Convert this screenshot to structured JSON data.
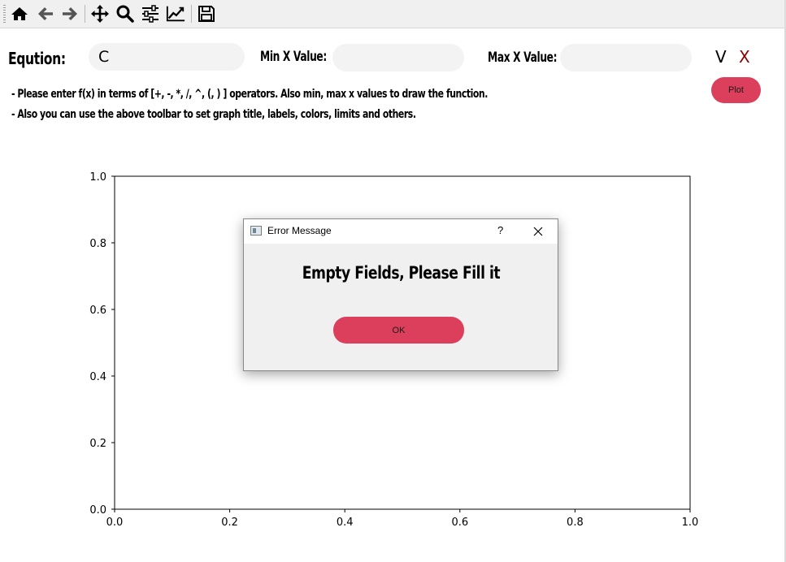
{
  "toolbar": {
    "buttons": [
      {
        "name": "home-icon"
      },
      {
        "name": "back-arrow-icon"
      },
      {
        "name": "forward-arrow-icon"
      },
      {
        "name": "pan-move-icon"
      },
      {
        "name": "zoom-icon"
      },
      {
        "name": "subplots-config-icon"
      },
      {
        "name": "edit-axes-icon"
      },
      {
        "name": "save-icon"
      }
    ]
  },
  "form": {
    "equation_label": "Eqution:",
    "equation_value": "C",
    "min_label": "Min X Value:",
    "min_value": "",
    "max_label": "Max X Value:",
    "max_value": "",
    "v_label": "V",
    "x_label": "X",
    "plot_label": "Plot"
  },
  "hints": [
    "- Please enter f(x) in terms of [+, -, *, /, ^, (, ) ] operators. Also min, max x values to draw the function.",
    "- Also you can use the above toolbar to set graph title, labels, colors, limits and others."
  ],
  "chart_data": {
    "type": "line",
    "title": "",
    "xlabel": "",
    "ylabel": "",
    "xlim": [
      0.0,
      1.0
    ],
    "ylim": [
      0.0,
      1.0
    ],
    "x_ticks": [
      "0.0",
      "0.2",
      "0.4",
      "0.6",
      "0.8",
      "1.0"
    ],
    "y_ticks": [
      "0.0",
      "0.2",
      "0.4",
      "0.6",
      "0.8",
      "1.0"
    ],
    "series": [],
    "grid": false
  },
  "dialog": {
    "title": "Error Message",
    "help": "?",
    "message": "Empty Fields, Please Fill it",
    "ok_label": "OK"
  },
  "colors": {
    "accent": "#dc3f5c",
    "x_mark": "#8b0000"
  }
}
